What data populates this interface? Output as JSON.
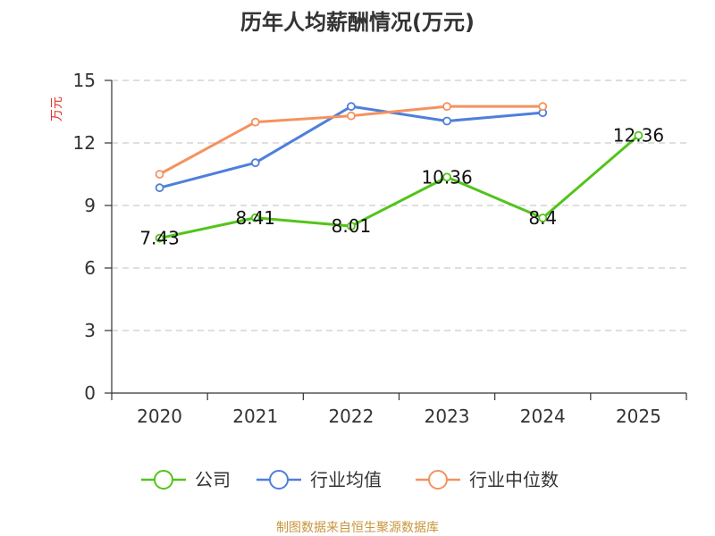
{
  "chart_data": {
    "type": "line",
    "title": "历年人均薪酬情况(万元)",
    "xlabel": "",
    "ylabel": "万元",
    "categories": [
      "2020",
      "2021",
      "2022",
      "2023",
      "2024",
      "2025"
    ],
    "ylim": [
      0,
      15
    ],
    "yticks": [
      0,
      3,
      6,
      9,
      12,
      15
    ],
    "grid": true,
    "legend_position": "bottom",
    "series": [
      {
        "name": "公司",
        "color": "#52c41a",
        "values": [
          7.43,
          8.41,
          8.01,
          10.36,
          8.4,
          12.36
        ],
        "labels": [
          "7.43",
          "8.41",
          "8.01",
          "10.36",
          "8.4",
          "12.36"
        ]
      },
      {
        "name": "行业均值",
        "color": "#4e7fdc",
        "values": [
          9.85,
          11.05,
          13.75,
          13.05,
          13.45,
          null
        ]
      },
      {
        "name": "行业中位数",
        "color": "#f5925e",
        "values": [
          10.5,
          13.0,
          13.3,
          13.75,
          13.75,
          null
        ]
      }
    ]
  },
  "colors": {
    "ylabel": "#e0312c",
    "source": "#c8943c",
    "grid": "#cccccc",
    "axis": "#333333"
  },
  "source_text": "制图数据来自恒生聚源数据库"
}
